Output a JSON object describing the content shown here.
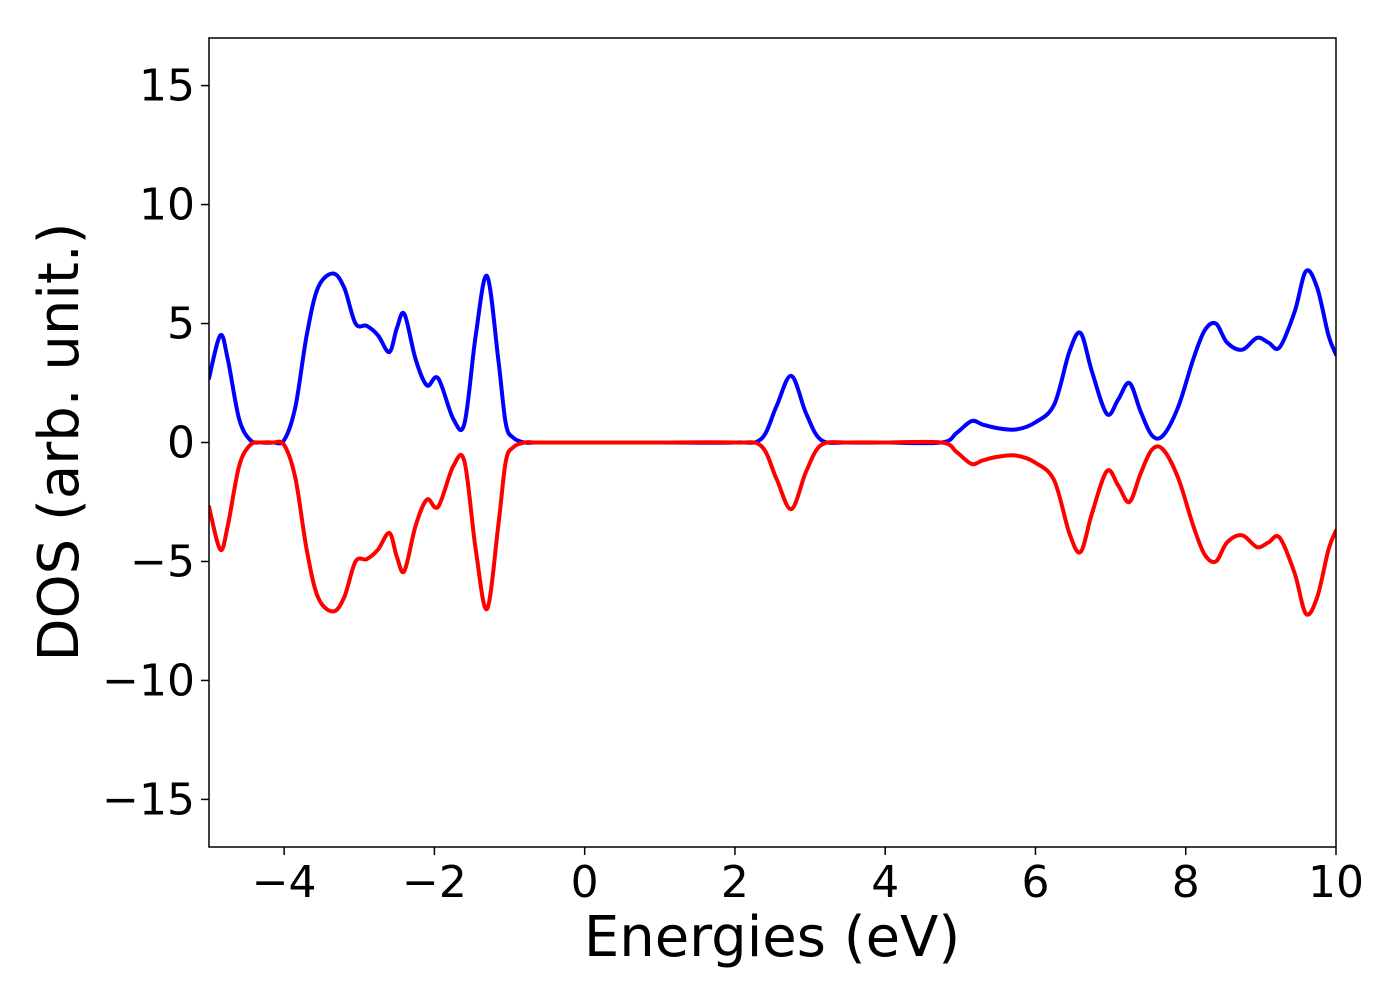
{
  "chart_data": {
    "type": "line",
    "title": "",
    "xlabel": "Energies (eV)",
    "ylabel": "DOS (arb. unit.)",
    "xlim": [
      -5,
      10
    ],
    "ylim": [
      -17,
      17
    ],
    "grid": false,
    "legend": "none",
    "x_ticks": [
      -4,
      -2,
      0,
      2,
      4,
      6,
      8,
      10
    ],
    "x_tick_labels": [
      "−4",
      "−2",
      "0",
      "2",
      "4",
      "6",
      "8",
      "10"
    ],
    "y_ticks": [
      -15,
      -10,
      -5,
      0,
      5,
      10,
      15
    ],
    "y_tick_labels": [
      "−15",
      "−10",
      "−5",
      "0",
      "5",
      "10",
      "15"
    ],
    "series": [
      {
        "color": "#0000ff",
        "x": [
          -5.0,
          -4.85,
          -4.75,
          -4.6,
          -4.45,
          -4.3,
          -4.15,
          -4.0,
          -3.85,
          -3.7,
          -3.55,
          -3.35,
          -3.2,
          -3.05,
          -2.9,
          -2.75,
          -2.6,
          -2.5,
          -2.4,
          -2.25,
          -2.1,
          -1.95,
          -1.75,
          -1.6,
          -1.45,
          -1.3,
          -1.15,
          -1.05,
          -0.95,
          -0.8,
          -0.65,
          -0.5,
          0.0,
          1.0,
          2.0,
          2.35,
          2.55,
          2.75,
          2.95,
          3.15,
          3.5,
          4.0,
          4.75,
          4.95,
          5.15,
          5.3,
          5.5,
          5.75,
          6.0,
          6.25,
          6.45,
          6.6,
          6.75,
          6.95,
          7.1,
          7.25,
          7.4,
          7.55,
          7.7,
          7.9,
          8.1,
          8.25,
          8.4,
          8.55,
          8.75,
          8.95,
          9.1,
          9.25,
          9.45,
          9.6,
          9.75,
          9.9,
          10.0
        ],
        "values": [
          2.7,
          4.5,
          3.5,
          1.0,
          0.1,
          0.0,
          0.0,
          0.1,
          1.5,
          4.5,
          6.5,
          7.1,
          6.5,
          5.0,
          4.9,
          4.5,
          3.8,
          4.8,
          5.4,
          3.5,
          2.4,
          2.7,
          1.0,
          0.8,
          4.5,
          7.0,
          3.5,
          0.8,
          0.2,
          0.0,
          0.0,
          0.0,
          0.0,
          0.0,
          0.0,
          0.15,
          1.5,
          2.8,
          1.2,
          0.1,
          0.0,
          0.0,
          0.0,
          0.4,
          0.9,
          0.75,
          0.6,
          0.55,
          0.85,
          1.6,
          3.8,
          4.6,
          3.0,
          1.2,
          1.8,
          2.5,
          1.3,
          0.3,
          0.3,
          1.5,
          3.5,
          4.7,
          5.0,
          4.2,
          3.9,
          4.4,
          4.2,
          4.0,
          5.5,
          7.2,
          6.5,
          4.5,
          3.7
        ]
      },
      {
        "color": "#ff0000",
        "x": [
          -5.0,
          -4.85,
          -4.75,
          -4.6,
          -4.45,
          -4.3,
          -4.15,
          -4.0,
          -3.85,
          -3.7,
          -3.55,
          -3.35,
          -3.2,
          -3.05,
          -2.9,
          -2.75,
          -2.6,
          -2.5,
          -2.4,
          -2.25,
          -2.1,
          -1.95,
          -1.75,
          -1.6,
          -1.45,
          -1.3,
          -1.15,
          -1.05,
          -0.95,
          -0.8,
          -0.65,
          -0.5,
          0.0,
          1.0,
          2.0,
          2.35,
          2.55,
          2.75,
          2.95,
          3.15,
          3.5,
          4.0,
          4.75,
          4.95,
          5.15,
          5.3,
          5.5,
          5.75,
          6.0,
          6.25,
          6.45,
          6.6,
          6.75,
          6.95,
          7.1,
          7.25,
          7.4,
          7.55,
          7.7,
          7.9,
          8.1,
          8.25,
          8.4,
          8.55,
          8.75,
          8.95,
          9.1,
          9.25,
          9.45,
          9.6,
          9.75,
          9.9,
          10.0
        ],
        "values": [
          -2.7,
          -4.5,
          -3.5,
          -1.0,
          -0.1,
          0.0,
          0.0,
          -0.1,
          -1.5,
          -4.5,
          -6.5,
          -7.1,
          -6.5,
          -5.0,
          -4.9,
          -4.5,
          -3.8,
          -4.8,
          -5.4,
          -3.5,
          -2.4,
          -2.7,
          -1.0,
          -0.8,
          -4.5,
          -7.0,
          -3.5,
          -0.8,
          -0.2,
          0.0,
          0.0,
          0.0,
          0.0,
          0.0,
          0.0,
          -0.15,
          -1.5,
          -2.8,
          -1.2,
          -0.1,
          0.0,
          0.0,
          0.0,
          -0.4,
          -0.9,
          -0.75,
          -0.6,
          -0.55,
          -0.85,
          -1.6,
          -3.8,
          -4.6,
          -3.0,
          -1.2,
          -1.8,
          -2.5,
          -1.3,
          -0.3,
          -0.3,
          -1.5,
          -3.5,
          -4.7,
          -5.0,
          -4.2,
          -3.9,
          -4.4,
          -4.2,
          -4.0,
          -5.5,
          -7.2,
          -6.5,
          -4.5,
          -3.7
        ]
      }
    ]
  }
}
